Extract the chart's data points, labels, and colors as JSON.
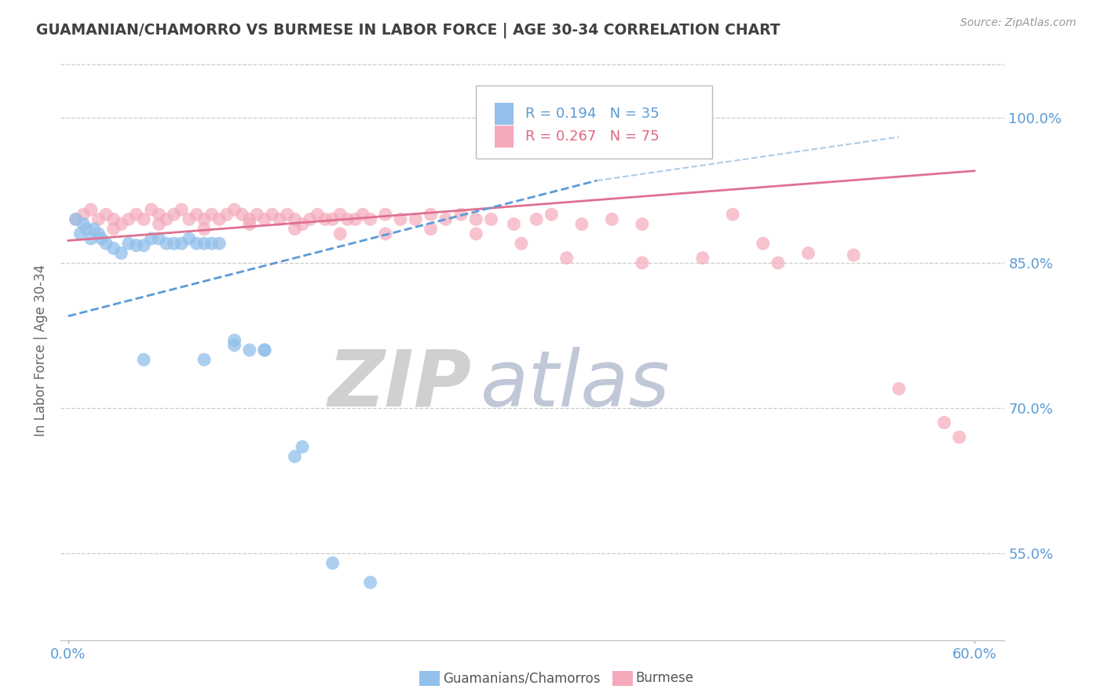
{
  "title": "GUAMANIAN/CHAMORRO VS BURMESE IN LABOR FORCE | AGE 30-34 CORRELATION CHART",
  "source": "Source: ZipAtlas.com",
  "ylabel": "In Labor Force | Age 30-34",
  "xlim": [
    -0.005,
    0.62
  ],
  "ylim": [
    0.46,
    1.06
  ],
  "yticks": [
    0.55,
    0.7,
    0.85,
    1.0
  ],
  "ytick_labels": [
    "55.0%",
    "70.0%",
    "85.0%",
    "100.0%"
  ],
  "xtick_left_label": "0.0%",
  "xtick_right_label": "60.0%",
  "color_blue": "#92C0EA",
  "color_blue_line": "#5B9BD5",
  "color_pink": "#F4AABB",
  "color_pink_line": "#E07090",
  "color_text": "#5B9BD5",
  "color_pink_text": "#E06880",
  "legend_r1": "R = 0.194",
  "legend_n1": "N = 35",
  "legend_r2": "R = 0.267",
  "legend_n2": "N = 75",
  "guamanian_x": [
    0.005,
    0.008,
    0.01,
    0.012,
    0.015,
    0.017,
    0.02,
    0.022,
    0.025,
    0.03,
    0.035,
    0.04,
    0.045,
    0.05,
    0.055,
    0.06,
    0.065,
    0.07,
    0.075,
    0.08,
    0.085,
    0.09,
    0.095,
    0.1,
    0.11,
    0.12,
    0.13,
    0.05,
    0.09,
    0.11,
    0.13,
    0.15,
    0.155,
    0.175,
    0.2
  ],
  "guamanian_y": [
    0.895,
    0.88,
    0.89,
    0.885,
    0.875,
    0.885,
    0.88,
    0.875,
    0.87,
    0.865,
    0.86,
    0.87,
    0.868,
    0.868,
    0.875,
    0.875,
    0.87,
    0.87,
    0.87,
    0.875,
    0.87,
    0.87,
    0.87,
    0.87,
    0.765,
    0.76,
    0.76,
    0.75,
    0.75,
    0.77,
    0.76,
    0.65,
    0.66,
    0.54,
    0.52
  ],
  "burmese_x": [
    0.005,
    0.01,
    0.015,
    0.02,
    0.025,
    0.03,
    0.035,
    0.04,
    0.045,
    0.05,
    0.055,
    0.06,
    0.065,
    0.07,
    0.075,
    0.08,
    0.085,
    0.09,
    0.095,
    0.1,
    0.105,
    0.11,
    0.115,
    0.12,
    0.125,
    0.13,
    0.135,
    0.14,
    0.145,
    0.15,
    0.155,
    0.16,
    0.165,
    0.17,
    0.175,
    0.18,
    0.185,
    0.19,
    0.195,
    0.2,
    0.21,
    0.22,
    0.23,
    0.24,
    0.25,
    0.26,
    0.27,
    0.28,
    0.295,
    0.31,
    0.32,
    0.34,
    0.36,
    0.38,
    0.03,
    0.06,
    0.09,
    0.12,
    0.15,
    0.18,
    0.21,
    0.24,
    0.27,
    0.3,
    0.33,
    0.38,
    0.42,
    0.47,
    0.52,
    0.44,
    0.46,
    0.49,
    0.55,
    0.58,
    0.59
  ],
  "burmese_y": [
    0.895,
    0.9,
    0.905,
    0.895,
    0.9,
    0.895,
    0.89,
    0.895,
    0.9,
    0.895,
    0.905,
    0.9,
    0.895,
    0.9,
    0.905,
    0.895,
    0.9,
    0.895,
    0.9,
    0.895,
    0.9,
    0.905,
    0.9,
    0.895,
    0.9,
    0.895,
    0.9,
    0.895,
    0.9,
    0.895,
    0.89,
    0.895,
    0.9,
    0.895,
    0.895,
    0.9,
    0.895,
    0.895,
    0.9,
    0.895,
    0.9,
    0.895,
    0.895,
    0.9,
    0.895,
    0.9,
    0.895,
    0.895,
    0.89,
    0.895,
    0.9,
    0.89,
    0.895,
    0.89,
    0.885,
    0.89,
    0.885,
    0.89,
    0.885,
    0.88,
    0.88,
    0.885,
    0.88,
    0.87,
    0.855,
    0.85,
    0.855,
    0.85,
    0.858,
    0.9,
    0.87,
    0.86,
    0.72,
    0.685,
    0.67
  ]
}
